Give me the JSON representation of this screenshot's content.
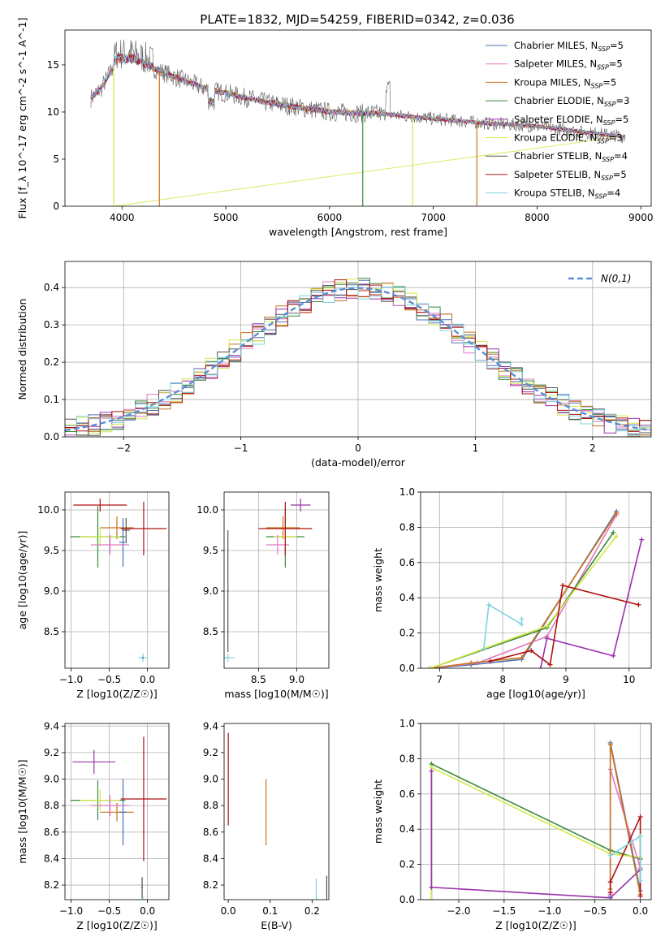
{
  "figure_title": "PLATE=1832, MJD=54259, FIBERID=0342, z=0.036",
  "legend_models": [
    {
      "name": "Chabrier MILES",
      "nssp": "5",
      "color": "#4c72b0"
    },
    {
      "name": "Salpeter MILES",
      "nssp": "5",
      "color": "#e377c2"
    },
    {
      "name": "Kroupa MILES",
      "nssp": "5",
      "color": "#c8741c"
    },
    {
      "name": "Chabrier ELODIE",
      "nssp": "3",
      "color": "#3a8a3a"
    },
    {
      "name": "Salpeter ELODIE",
      "nssp": "5",
      "color": "#9932aa"
    },
    {
      "name": "Kroupa ELODIE",
      "nssp": "3",
      "color": "#d4e84a"
    },
    {
      "name": "Chabrier STELIB",
      "nssp": "4",
      "color": "#555555"
    },
    {
      "name": "Salpeter STELIB",
      "nssp": "5",
      "color": "#b01010"
    },
    {
      "name": "Kroupa STELIB",
      "nssp": "4",
      "color": "#7fd3de"
    }
  ],
  "chart_data": [
    {
      "id": "spectrum",
      "type": "line",
      "xlabel": "wavelength [Angstrom, rest frame]",
      "ylabel": "Flux [f_λ 10^-17 erg cm^-2 s^-1 A^-1]",
      "xlim": [
        3450,
        9100
      ],
      "ylim": [
        0,
        18.7
      ],
      "xticks": [
        4000,
        5000,
        6000,
        7000,
        8000,
        9000
      ],
      "yticks": [
        0,
        5,
        10,
        15
      ],
      "grid": false,
      "legend_position": "top-right",
      "continuum_points": [
        [
          3700,
          11.5
        ],
        [
          3800,
          12.5
        ],
        [
          3950,
          15.5
        ],
        [
          4100,
          15.5
        ],
        [
          4400,
          14.2
        ],
        [
          4800,
          12.5
        ],
        [
          5000,
          12.0
        ],
        [
          5400,
          11.0
        ],
        [
          6000,
          10.0
        ],
        [
          6500,
          9.8
        ],
        [
          7000,
          9.3
        ],
        [
          7500,
          8.8
        ],
        [
          8000,
          8.5
        ],
        [
          8500,
          7.8
        ],
        [
          8850,
          7.4
        ]
      ]
    },
    {
      "id": "residuals",
      "type": "line",
      "xlabel": "(data-model)/error",
      "ylabel": "Normed distribution",
      "xlim": [
        -2.5,
        2.5
      ],
      "ylim": [
        0,
        0.47
      ],
      "xticks": [
        -2,
        -1,
        0,
        1,
        2
      ],
      "yticks": [
        0,
        0.1,
        0.2,
        0.3,
        0.4
      ],
      "grid": true,
      "legend_position": "top-right",
      "legend_label": "N(0,1)",
      "gaussian": {
        "mean": 0,
        "sigma": 1,
        "color": "#5b8ed6"
      }
    },
    {
      "id": "age-vs-Z",
      "type": "scatter",
      "xlabel": "Z [log10(Z/Z☉)]",
      "ylabel": "age [log10(age/yr)]",
      "xlim": [
        -1.08,
        0.28
      ],
      "ylim": [
        8.05,
        10.22
      ],
      "xticks": [
        -1.0,
        -0.5,
        0.0
      ],
      "yticks": [
        8.5,
        9.0,
        9.5,
        10.0
      ],
      "grid": true,
      "points": [
        {
          "model": 7,
          "x": -0.62,
          "y": 10.06,
          "xerr": 0.35,
          "yerr": 0.08
        },
        {
          "model": 2,
          "x": -0.4,
          "y": 9.78,
          "xerr": 0.22,
          "yerr": 0.14
        },
        {
          "model": 3,
          "x": -0.65,
          "y": 9.67,
          "xerr": 0.36,
          "yerr": 0.38
        },
        {
          "model": 5,
          "x": -0.62,
          "y": 9.67,
          "xerr": 0.26,
          "yerr": 0.12
        },
        {
          "model": 1,
          "x": -0.49,
          "y": 9.57,
          "xerr": 0.25,
          "yerr": 0.12
        },
        {
          "model": 0,
          "x": -0.32,
          "y": 9.6,
          "xerr": 0.05,
          "yerr": 0.3
        },
        {
          "model": 6,
          "x": -0.28,
          "y": 9.75,
          "xerr": 0.05,
          "yerr": 0.15
        },
        {
          "model": 7,
          "x": -0.05,
          "y": 9.77,
          "xerr": 0.3,
          "yerr": 0.33
        },
        {
          "model": 8,
          "x": -0.06,
          "y": 8.18,
          "xerr": 0.06,
          "yerr": 0.05
        },
        {
          "model": 0,
          "x": -0.06,
          "y": 8.18,
          "xerr": 0.01,
          "yerr": 0.01
        }
      ]
    },
    {
      "id": "age-vs-mass",
      "type": "scatter",
      "xlabel": "mass [log10(M/M☉)]",
      "ylabel": "",
      "xlim": [
        8.05,
        9.42
      ],
      "ylim": [
        8.05,
        10.22
      ],
      "xticks": [
        8.5,
        9.0
      ],
      "yticks": [
        8.5,
        9.0,
        9.5,
        10.0
      ],
      "grid": true,
      "points": [
        {
          "model": 4,
          "x": 9.05,
          "y": 10.06,
          "xerr": 0.13,
          "yerr": 0.08
        },
        {
          "model": 2,
          "x": 8.82,
          "y": 9.78,
          "xerr": 0.22,
          "yerr": 0.14
        },
        {
          "model": 3,
          "x": 8.85,
          "y": 9.67,
          "xerr": 0.25,
          "yerr": 0.38
        },
        {
          "model": 5,
          "x": 8.85,
          "y": 9.67,
          "xerr": 0.15,
          "yerr": 0.12
        },
        {
          "model": 1,
          "x": 8.75,
          "y": 9.57,
          "xerr": 0.15,
          "yerr": 0.12
        },
        {
          "model": 7,
          "x": 8.85,
          "y": 9.77,
          "xerr": 0.35,
          "yerr": 0.33
        },
        {
          "model": 8,
          "x": 8.1,
          "y": 8.18,
          "xerr": 0.08,
          "yerr": 0.05
        },
        {
          "model": 6,
          "x": 8.1,
          "y": 9.0,
          "xerr": 0.01,
          "yerr": 0.75
        }
      ]
    },
    {
      "id": "weight-vs-age",
      "type": "line",
      "xlabel": "age [log10(age/yr)]",
      "ylabel": "mass weight",
      "xlim": [
        6.7,
        10.35
      ],
      "ylim": [
        0,
        1.0
      ],
      "xticks": [
        7,
        8,
        9,
        10
      ],
      "yticks": [
        0.0,
        0.2,
        0.4,
        0.6,
        0.8,
        1.0
      ],
      "grid": true,
      "series": [
        {
          "model": 0,
          "points": [
            [
              6.85,
              0.0
            ],
            [
              7.5,
              0.02
            ],
            [
              8.3,
              0.05
            ],
            [
              9.8,
              0.89
            ]
          ]
        },
        {
          "model": 1,
          "points": [
            [
              6.85,
              0.0
            ],
            [
              7.6,
              0.03
            ],
            [
              8.7,
              0.18
            ],
            [
              9.8,
              0.87
            ]
          ]
        },
        {
          "model": 2,
          "points": [
            [
              6.85,
              0.0
            ],
            [
              7.5,
              0.03
            ],
            [
              8.3,
              0.06
            ],
            [
              9.8,
              0.88
            ]
          ]
        },
        {
          "model": 3,
          "points": [
            [
              6.85,
              0.0
            ],
            [
              8.7,
              0.23
            ],
            [
              9.75,
              0.77
            ]
          ]
        },
        {
          "model": 4,
          "points": [
            [
              8.6,
              0.0
            ],
            [
              8.7,
              0.17
            ],
            [
              9.75,
              0.07
            ],
            [
              10.2,
              0.73
            ]
          ]
        },
        {
          "model": 5,
          "points": [
            [
              6.85,
              0.0
            ],
            [
              8.7,
              0.24
            ],
            [
              9.8,
              0.75
            ]
          ]
        },
        {
          "model": 7,
          "points": [
            [
              7.8,
              0.04
            ],
            [
              8.45,
              0.1
            ],
            [
              8.75,
              0.02
            ],
            [
              8.95,
              0.47
            ],
            [
              10.15,
              0.36
            ]
          ]
        },
        {
          "model": 8,
          "points": [
            [
              7.7,
              0.11
            ],
            [
              7.78,
              0.36
            ],
            [
              8.3,
              0.25
            ],
            [
              8.3,
              0.28
            ]
          ]
        }
      ]
    },
    {
      "id": "mass-vs-Z",
      "type": "scatter",
      "xlabel": "Z [log10(Z/Z☉)]",
      "ylabel": "mass [log10(M/M☉)]",
      "xlim": [
        -1.08,
        0.28
      ],
      "ylim": [
        8.09,
        9.42
      ],
      "xticks": [
        -1.0,
        -0.5,
        0.0
      ],
      "yticks": [
        8.2,
        8.4,
        8.6,
        8.8,
        9.0,
        9.2,
        9.4
      ],
      "grid": true,
      "points": [
        {
          "model": 4,
          "x": -0.7,
          "y": 9.13,
          "xerr": 0.28,
          "yerr": 0.09
        },
        {
          "model": 3,
          "x": -0.65,
          "y": 8.84,
          "xerr": 0.36,
          "yerr": 0.15
        },
        {
          "model": 5,
          "x": -0.62,
          "y": 8.84,
          "xerr": 0.26,
          "yerr": 0.08
        },
        {
          "model": 2,
          "x": -0.4,
          "y": 8.75,
          "xerr": 0.22,
          "yerr": 0.07
        },
        {
          "model": 1,
          "x": -0.49,
          "y": 8.8,
          "xerr": 0.25,
          "yerr": 0.08
        },
        {
          "model": 0,
          "x": -0.32,
          "y": 8.75,
          "xerr": 0.05,
          "yerr": 0.25
        },
        {
          "model": 7,
          "x": -0.05,
          "y": 8.85,
          "xerr": 0.3,
          "yerr": 0.47
        },
        {
          "model": 8,
          "x": -0.06,
          "y": 8.09,
          "xerr": 0.06,
          "yerr": 0.02
        },
        {
          "model": 6,
          "x": -0.07,
          "y": 8.18,
          "xerr": 0.01,
          "yerr": 0.08
        }
      ]
    },
    {
      "id": "mass-vs-EBV",
      "type": "scatter",
      "xlabel": "E(B-V)",
      "ylabel": "",
      "xlim": [
        -0.01,
        0.24
      ],
      "ylim": [
        8.09,
        9.42
      ],
      "xticks": [
        0.0,
        0.1,
        0.2
      ],
      "yticks": [
        8.2,
        8.4,
        8.6,
        8.8,
        9.0,
        9.2,
        9.4
      ],
      "grid": false,
      "points": [
        {
          "model": 7,
          "x": 0.0,
          "y": 9.0,
          "xerr": 0.0,
          "yerr": 0.35
        },
        {
          "model": 2,
          "x": 0.09,
          "y": 8.75,
          "xerr": 0.0,
          "yerr": 0.25
        },
        {
          "model": 8,
          "x": 0.21,
          "y": 8.09,
          "xerr": 0.0,
          "yerr": 0.16
        },
        {
          "model": 6,
          "x": 0.235,
          "y": 8.18,
          "xerr": 0.0,
          "yerr": 0.09
        }
      ]
    },
    {
      "id": "weight-vs-Z",
      "type": "line",
      "xlabel": "Z [log10(Z/Z☉)]",
      "ylabel": "mass weight",
      "xlim": [
        -2.42,
        0.12
      ],
      "ylim": [
        0,
        1.0
      ],
      "xticks": [
        -2.0,
        -1.5,
        -1.0,
        -0.5,
        0.0
      ],
      "yticks": [
        0.0,
        0.2,
        0.4,
        0.6,
        0.8,
        1.0
      ],
      "grid": true,
      "series": [
        {
          "model": 3,
          "points": [
            [
              -2.3,
              0.0
            ],
            [
              -2.3,
              0.77
            ],
            [
              -0.33,
              0.28
            ],
            [
              0.0,
              0.23
            ]
          ]
        },
        {
          "model": 5,
          "points": [
            [
              -2.3,
              0.0
            ],
            [
              -2.3,
              0.75
            ],
            [
              -0.33,
              0.26
            ],
            [
              0.0,
              0.24
            ]
          ]
        },
        {
          "model": 4,
          "points": [
            [
              -2.3,
              0.73
            ],
            [
              -2.3,
              0.07
            ],
            [
              -0.33,
              0.01
            ],
            [
              0.0,
              0.17
            ]
          ]
        },
        {
          "model": 0,
          "points": [
            [
              -0.33,
              0.02
            ],
            [
              -0.33,
              0.89
            ],
            [
              0.0,
              0.05
            ]
          ]
        },
        {
          "model": 1,
          "points": [
            [
              -0.33,
              0.03
            ],
            [
              -0.33,
              0.74
            ],
            [
              0.0,
              0.18
            ]
          ]
        },
        {
          "model": 2,
          "points": [
            [
              -0.33,
              0.06
            ],
            [
              -0.33,
              0.88
            ],
            [
              0.0,
              0.03
            ]
          ]
        },
        {
          "model": 7,
          "points": [
            [
              -0.33,
              0.04
            ],
            [
              -0.33,
              0.1
            ],
            [
              0.0,
              0.47
            ],
            [
              0.0,
              0.02
            ]
          ]
        },
        {
          "model": 8,
          "points": [
            [
              -0.33,
              0.25
            ],
            [
              0.0,
              0.36
            ],
            [
              0.0,
              0.11
            ]
          ]
        }
      ]
    }
  ]
}
